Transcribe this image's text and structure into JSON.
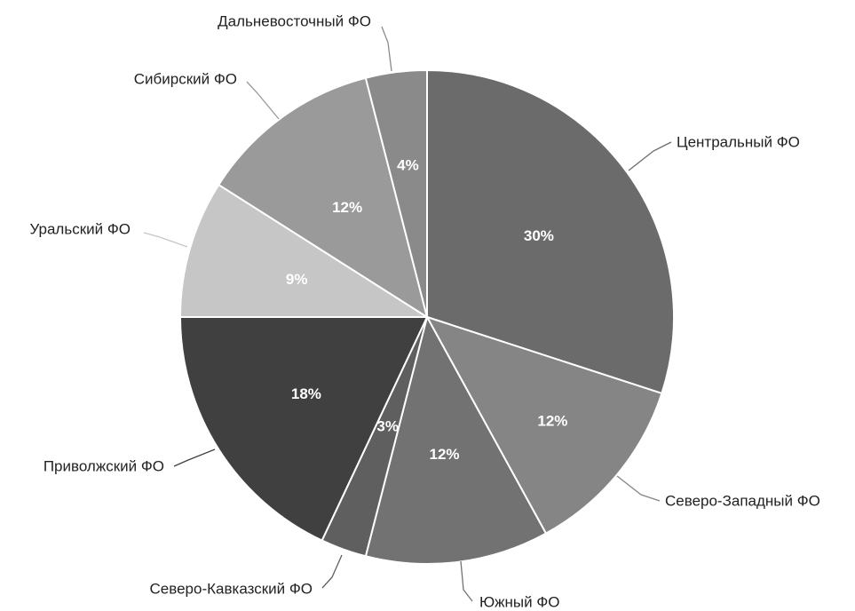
{
  "chart_data": {
    "type": "pie",
    "title": "",
    "start_angle_deg": 0,
    "direction": "clockwise",
    "slices": [
      {
        "label": "Центральный ФО",
        "value": 30,
        "pct_label": "30%",
        "color": "#6b6b6b",
        "text_color": "#ffffff",
        "leader_color": "#6b6b6b"
      },
      {
        "label": "Северо-Западный ФО",
        "value": 12,
        "pct_label": "12%",
        "color": "#858585",
        "text_color": "#ffffff",
        "leader_color": "#858585"
      },
      {
        "label": "Южный ФО",
        "value": 12,
        "pct_label": "12%",
        "color": "#727272",
        "text_color": "#ffffff",
        "leader_color": "#727272"
      },
      {
        "label": "Северо-Кавказский ФО",
        "value": 3,
        "pct_label": "3%",
        "color": "#5f5f5f",
        "text_color": "#ffffff",
        "leader_color": "#5f5f5f"
      },
      {
        "label": "Приволжский ФО",
        "value": 18,
        "pct_label": "18%",
        "color": "#404040",
        "text_color": "#ffffff",
        "leader_color": "#404040"
      },
      {
        "label": "Уральский ФО",
        "value": 9,
        "pct_label": "9%",
        "color": "#c6c6c6",
        "text_color": "#ffffff",
        "leader_color": "#c6c6c6"
      },
      {
        "label": "Сибирский ФО",
        "value": 12,
        "pct_label": "12%",
        "color": "#9a9a9a",
        "text_color": "#ffffff",
        "leader_color": "#9a9a9a"
      },
      {
        "label": "Дальневосточный ФО",
        "value": 4,
        "pct_label": "4%",
        "color": "#8a8a8a",
        "text_color": "#ffffff",
        "leader_color": "#8a8a8a"
      }
    ]
  }
}
